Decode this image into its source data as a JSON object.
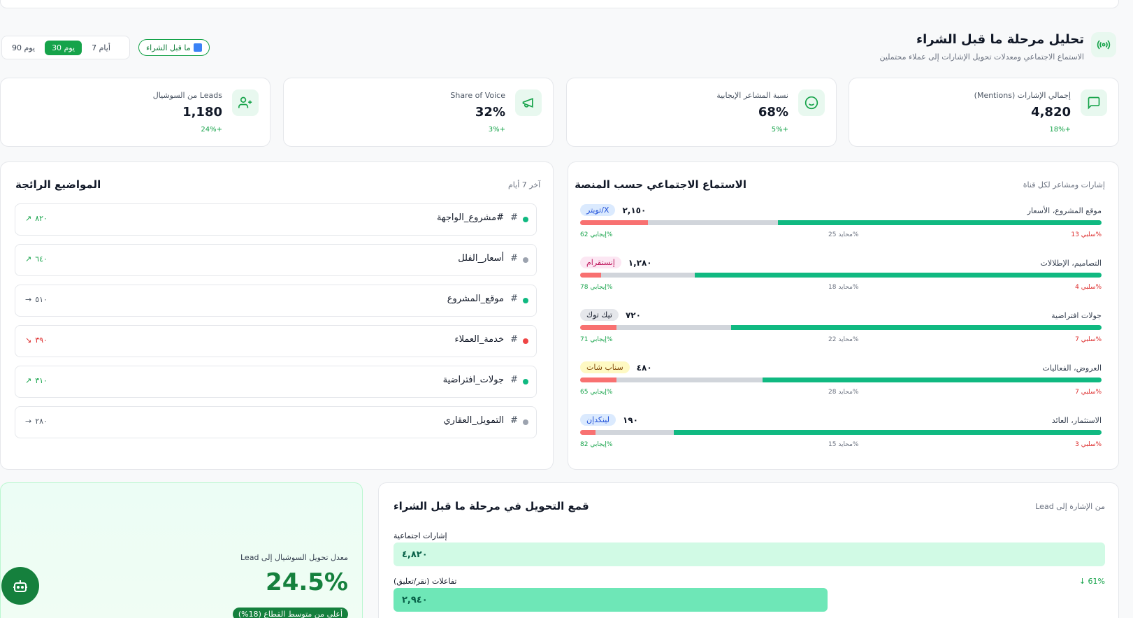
{
  "header": {
    "title": "تحليل مرحلة ما قبل الشراء",
    "subtitle": "الاستماع الاجتماعي ومعدلات تحويل الإشارات إلى عملاء محتملين",
    "stage_pill": "ما قبل الشراء",
    "ranges": [
      "7 أيام",
      "30 يوم",
      "90 يوم"
    ],
    "active_range": "30 يوم"
  },
  "kpis": [
    {
      "label": "إجمالي الإشارات (Mentions)",
      "value": "4,820",
      "delta": "18%+",
      "icon": "message-icon"
    },
    {
      "label": "نسبة المشاعر الإيجابية",
      "value": "68%",
      "delta": "5%+",
      "icon": "smile-icon"
    },
    {
      "label": "Share of Voice",
      "value": "32%",
      "delta": "3%+",
      "icon": "megaphone-icon"
    },
    {
      "label": "Leads من السوشيال",
      "value": "1,180",
      "delta": "24%+",
      "icon": "user-plus-icon"
    }
  ],
  "platforms_section": {
    "title": "الاستماع الاجتماعي حسب المنصة",
    "note": "إشارات ومشاعر لكل قناة",
    "items": [
      {
        "tag": "تويتر/X",
        "count": "٢,١٥٠",
        "topics": "موقع المشروع، الأسعار",
        "pos": 62,
        "neu": 25,
        "neg": 13,
        "pos_label": "إيجابي 62%",
        "neu_label": "محايد 25%",
        "neg_label": "سلبي 13%",
        "tag_bg": "#dbeafe",
        "tag_fg": "#1d4ed8"
      },
      {
        "tag": "إنستقرام",
        "count": "١,٢٨٠",
        "topics": "التصاميم، الإطلالات",
        "pos": 78,
        "neu": 18,
        "neg": 4,
        "pos_label": "إيجابي 78%",
        "neu_label": "محايد 18%",
        "neg_label": "سلبي 4%",
        "tag_bg": "#fce7f3",
        "tag_fg": "#be185d"
      },
      {
        "tag": "تيك توك",
        "count": "٧٢٠",
        "topics": "جولات افتراضية",
        "pos": 71,
        "neu": 22,
        "neg": 7,
        "pos_label": "إيجابي 71%",
        "neu_label": "محايد 22%",
        "neg_label": "سلبي 7%",
        "tag_bg": "#e5e7eb",
        "tag_fg": "#111827"
      },
      {
        "tag": "سناب شات",
        "count": "٤٨٠",
        "topics": "العروض، الفعاليات",
        "pos": 65,
        "neu": 28,
        "neg": 7,
        "pos_label": "إيجابي 65%",
        "neu_label": "محايد 28%",
        "neg_label": "سلبي 7%",
        "tag_bg": "#fef9c3",
        "tag_fg": "#854d0e"
      },
      {
        "tag": "لينكدإن",
        "count": "١٩٠",
        "topics": "الاستثمار، العائد",
        "pos": 82,
        "neu": 15,
        "neg": 3,
        "pos_label": "إيجابي 82%",
        "neu_label": "محايد 15%",
        "neg_label": "سلبي 3%",
        "tag_bg": "#dbeafe",
        "tag_fg": "#1d4ed8"
      }
    ]
  },
  "trending": {
    "title": "المواضيع الرائجة",
    "note": "آخر 7 أيام",
    "items": [
      {
        "name": "#مشروع_الواجهة",
        "value": "٨٢٠",
        "arrow": "↗",
        "dot": "#10b981",
        "color": "#16a34a"
      },
      {
        "name": "أسعار_الفلل",
        "value": "٦٤٠",
        "arrow": "↗",
        "dot": "#9ca3af",
        "color": "#16a34a"
      },
      {
        "name": "موقع_المشروع",
        "value": "٥١٠",
        "arrow": "→",
        "dot": "#10b981",
        "color": "#4b5563"
      },
      {
        "name": "خدمة_العملاء",
        "value": "٣٩٠",
        "arrow": "↘",
        "dot": "#ef4444",
        "color": "#dc2626"
      },
      {
        "name": "جولات_افتراضية",
        "value": "٣١٠",
        "arrow": "↗",
        "dot": "#10b981",
        "color": "#16a34a"
      },
      {
        "name": "التمويل_العقاري",
        "value": "٢٨٠",
        "arrow": "→",
        "dot": "#9ca3af",
        "color": "#4b5563"
      }
    ]
  },
  "conversion": {
    "label": "معدل تحويل السوشيال إلى Lead",
    "value": "24.5%",
    "badge": "أعلى من متوسط القطاع (18%)"
  },
  "funnel": {
    "title": "قمع التحويل في مرحلة ما قبل الشراء",
    "note": "من الإشارة إلى Lead",
    "stages": [
      {
        "label": "إشارات اجتماعية",
        "value": "٤,٨٢٠",
        "width": 1,
        "color": "#d1fae5"
      },
      {
        "label": "تفاعلات (نقر/تعليق)",
        "value": "٢,٩٤٠",
        "width": 0.61,
        "color": "#6ee7b7",
        "drop": "61% ↓"
      }
    ]
  }
}
